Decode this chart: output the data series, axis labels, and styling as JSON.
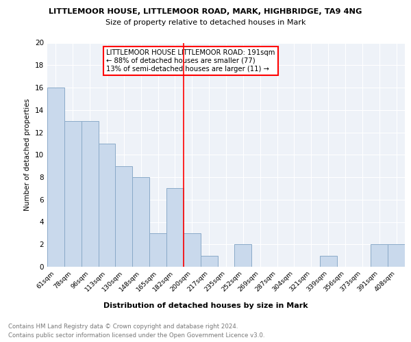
{
  "title1": "LITTLEMOOR HOUSE, LITTLEMOOR ROAD, MARK, HIGHBRIDGE, TA9 4NG",
  "title2": "Size of property relative to detached houses in Mark",
  "xlabel": "Distribution of detached houses by size in Mark",
  "ylabel": "Number of detached properties",
  "categories": [
    "61sqm",
    "78sqm",
    "96sqm",
    "113sqm",
    "130sqm",
    "148sqm",
    "165sqm",
    "182sqm",
    "200sqm",
    "217sqm",
    "235sqm",
    "252sqm",
    "269sqm",
    "287sqm",
    "304sqm",
    "321sqm",
    "339sqm",
    "356sqm",
    "373sqm",
    "391sqm",
    "408sqm"
  ],
  "values": [
    16,
    13,
    13,
    11,
    9,
    8,
    3,
    7,
    3,
    1,
    0,
    2,
    0,
    0,
    0,
    0,
    1,
    0,
    0,
    2,
    2
  ],
  "bar_color": "#c9d9ec",
  "bar_edge_color": "#8aaac8",
  "vline_color": "red",
  "legend_text1": "LITTLEMOOR HOUSE LITTLEMOOR ROAD: 191sqm",
  "legend_text2": "← 88% of detached houses are smaller (77)",
  "legend_text3": "13% of semi-detached houses are larger (11) →",
  "ylim": [
    0,
    20
  ],
  "yticks": [
    0,
    2,
    4,
    6,
    8,
    10,
    12,
    14,
    16,
    18,
    20
  ],
  "footer1": "Contains HM Land Registry data © Crown copyright and database right 2024.",
  "footer2": "Contains public sector information licensed under the Open Government Licence v3.0.",
  "bg_color": "#eef2f8",
  "grid_color": "#ffffff"
}
